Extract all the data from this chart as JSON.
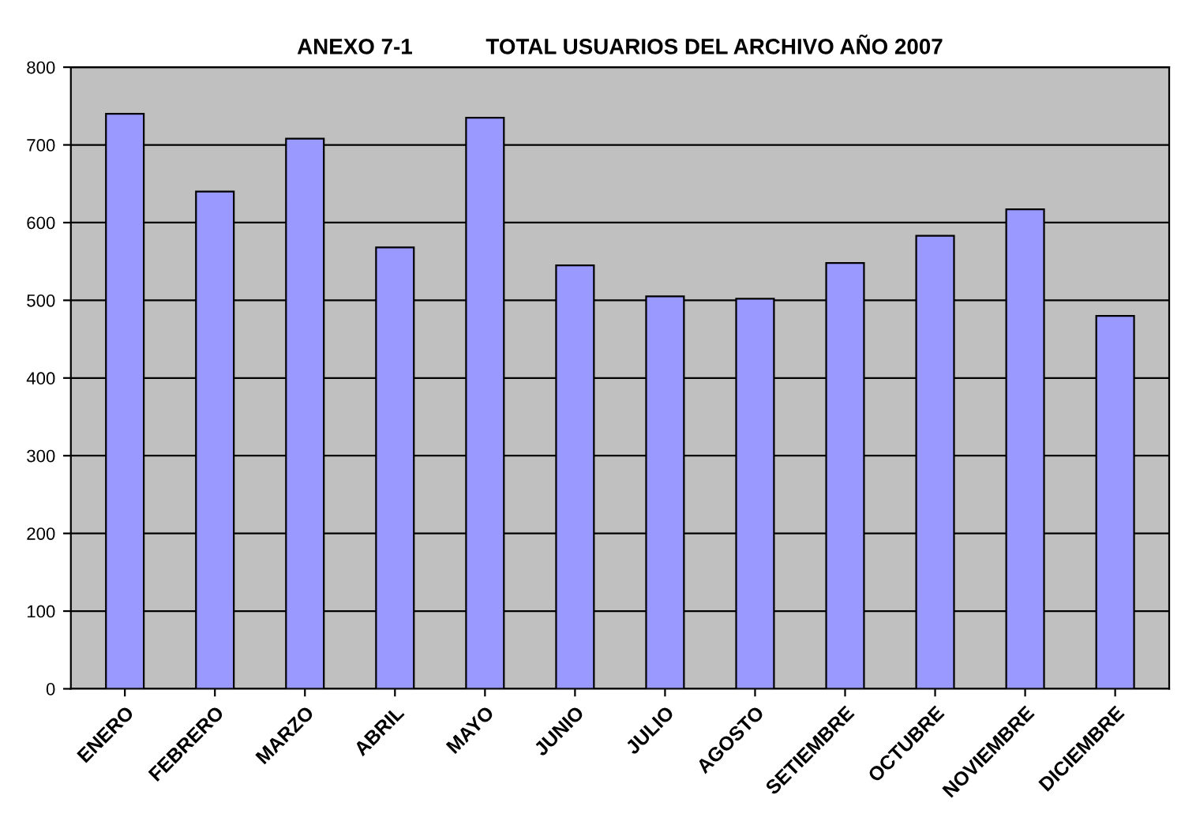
{
  "chart_data": {
    "type": "bar",
    "title": "ANEXO 7-1            TOTAL USUARIOS DEL ARCHIVO AÑO 2007",
    "categories": [
      "ENERO",
      "FEBRERO",
      "MARZO",
      "ABRIL",
      "MAYO",
      "JUNIO",
      "JULIO",
      "AGOSTO",
      "SETIEMBRE",
      "OCTUBRE",
      "NOVIEMBRE",
      "DICIEMBRE"
    ],
    "values": [
      740,
      640,
      708,
      568,
      735,
      545,
      505,
      502,
      548,
      583,
      617,
      480
    ],
    "color": "#9999ff",
    "ylim": [
      0,
      800
    ],
    "yticks": [
      0,
      100,
      200,
      300,
      400,
      500,
      600,
      700,
      800
    ],
    "grid": "y",
    "legend": false
  }
}
